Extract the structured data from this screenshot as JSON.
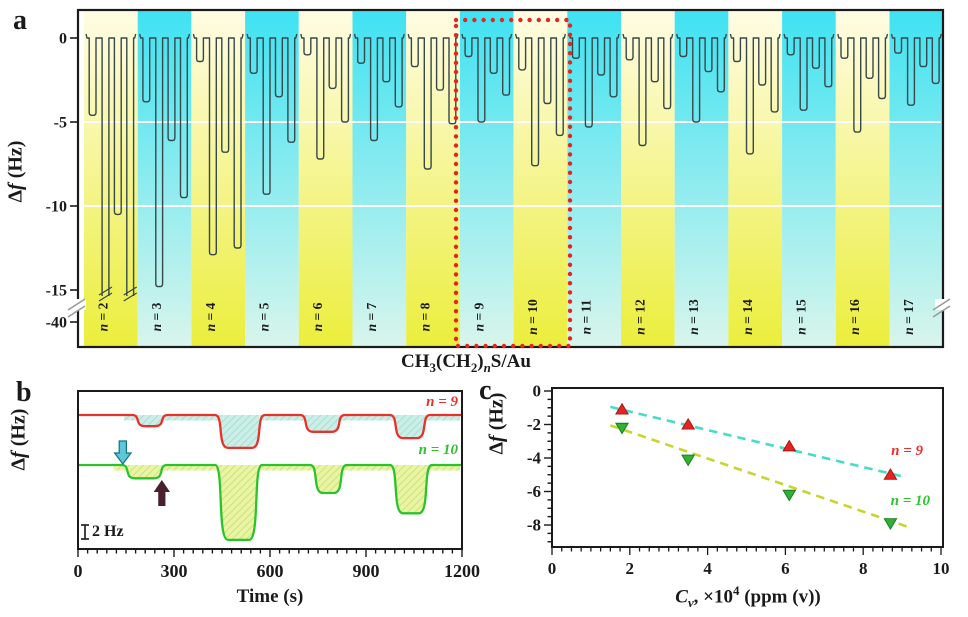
{
  "figure": {
    "panel_labels": {
      "a": "a",
      "b": "b",
      "c": "c"
    }
  },
  "colors": {
    "axis": "#1a1a1a",
    "trace": "#37474a",
    "red": "#e8312b",
    "green": "#2bc32b",
    "band_yellow_top": "#fffce4",
    "band_yellow_bottom": "#ebee3c",
    "band_cyan_top": "#3fe2f2",
    "band_cyan_bottom": "#d8f5ec",
    "highlight_red": "#e52320",
    "cyan_fill": "#cdeee6",
    "cyan_hatch": "#97dcd1",
    "green_fill": "#e9f4a6",
    "green_hatch": "#c6df67",
    "trend_cyan": "#45ddc5",
    "trend_yellow": "#c9d42e",
    "marker_red": "#e52320",
    "marker_red_edge": "#a51515",
    "marker_green": "#2eb135",
    "marker_green_edge": "#157a1c",
    "arrow_cyan": "#5bc8d8",
    "arrow_cyan_edge": "#15717f",
    "arrow_maroon": "#4a2030",
    "break_mark": "#9a9a9a"
  },
  "panel_a": {
    "label": "a",
    "ylabel": {
      "d": "Δ",
      "f": "f",
      "rest": " (Hz)"
    },
    "ytick_labels": [
      "0",
      "-5",
      "-10",
      "-15",
      "-40"
    ],
    "xlabel": {
      "p1": "CH",
      "s1": "3",
      "p2": "(CH",
      "s2": "2",
      "p3": ")",
      "s3": "n",
      "p4": "S/Au"
    }
  },
  "panel_b": {
    "label": "b",
    "ylabel": {
      "d": "Δ",
      "f": "f",
      "rest": " (Hz)"
    },
    "xlabel": "Time (s)",
    "xtick_labels": [
      "0",
      "300",
      "600",
      "900",
      "1200"
    ],
    "scalebar_label": "2 Hz",
    "series_labels": {
      "n9": {
        "n": "n",
        "eq": " = ",
        "val": "9"
      },
      "n10": {
        "n": "n",
        "eq": " = ",
        "val": "10"
      }
    }
  },
  "panel_c": {
    "label": "c",
    "ylabel": {
      "d": "Δ",
      "f": "f",
      "rest": " (Hz)"
    },
    "xlabel": {
      "c": "C",
      "v": "v",
      "mid": ", ×10",
      "exp": "4",
      "rest": " (ppm (v))"
    },
    "xtick_labels": [
      "0",
      "2",
      "4",
      "6",
      "8",
      "10"
    ],
    "ytick_labels": [
      "0",
      "-2",
      "-4",
      "-6",
      "-8"
    ],
    "series_labels": {
      "n9": {
        "n": "n",
        "eq": " = ",
        "val": "9"
      },
      "n10": {
        "n": "n",
        "eq": " = ",
        "val": "10"
      }
    }
  },
  "chart_data": [
    {
      "id": "a",
      "type": "line",
      "description": "QCM frequency responses for CH3(CH2)nS/Au monolayers, four analyte injections per chain length",
      "ylabel": "Δf (Hz)",
      "xlabel": "CH3(CH2)nS/Au",
      "yticks": [
        0,
        -5,
        -10,
        -15,
        -40
      ],
      "axis_break_between": [
        -15,
        -40
      ],
      "gridlines_hz": [
        -5,
        -10
      ],
      "highlight_box_bands": [
        9,
        10
      ],
      "bands": [
        {
          "n": 2,
          "label": "n = 2",
          "tint": "yellow",
          "dips_hz": [
            -4.6,
            -40,
            -10.5,
            -40
          ]
        },
        {
          "n": 3,
          "label": "n = 3",
          "tint": "cyan",
          "dips_hz": [
            -3.8,
            -14.8,
            -6.1,
            -9.5
          ]
        },
        {
          "n": 4,
          "label": "n = 4",
          "tint": "yellow",
          "dips_hz": [
            -1.4,
            -12.9,
            -6.8,
            -12.5
          ]
        },
        {
          "n": 5,
          "label": "n = 5",
          "tint": "cyan",
          "dips_hz": [
            -2.1,
            -9.3,
            -3.5,
            -6.2
          ]
        },
        {
          "n": 6,
          "label": "n = 6",
          "tint": "yellow",
          "dips_hz": [
            -1.0,
            -7.2,
            -3.0,
            -5.0
          ]
        },
        {
          "n": 7,
          "label": "n = 7",
          "tint": "cyan",
          "dips_hz": [
            -1.5,
            -6.1,
            -2.6,
            -4.1
          ]
        },
        {
          "n": 8,
          "label": "n = 8",
          "tint": "yellow",
          "dips_hz": [
            -1.7,
            -7.8,
            -3.1,
            -5.1
          ]
        },
        {
          "n": 9,
          "label": "n = 9",
          "tint": "cyan",
          "dips_hz": [
            -1.1,
            -5.0,
            -2.1,
            -3.4
          ]
        },
        {
          "n": 10,
          "label": "n = 10",
          "tint": "yellow",
          "dips_hz": [
            -1.9,
            -7.6,
            -3.9,
            -5.8
          ]
        },
        {
          "n": 11,
          "label": "n = 11",
          "tint": "cyan",
          "dips_hz": [
            -1.2,
            -5.3,
            -2.2,
            -3.5
          ]
        },
        {
          "n": 12,
          "label": "n = 12",
          "tint": "yellow",
          "dips_hz": [
            -1.3,
            -6.4,
            -2.6,
            -4.2
          ]
        },
        {
          "n": 13,
          "label": "n = 13",
          "tint": "cyan",
          "dips_hz": [
            -1.1,
            -5.0,
            -2.0,
            -3.2
          ]
        },
        {
          "n": 14,
          "label": "n = 14",
          "tint": "yellow",
          "dips_hz": [
            -1.4,
            -6.9,
            -2.8,
            -4.4
          ]
        },
        {
          "n": 15,
          "label": "n = 15",
          "tint": "cyan",
          "dips_hz": [
            -1.0,
            -4.3,
            -1.8,
            -2.9
          ]
        },
        {
          "n": 16,
          "label": "n = 16",
          "tint": "yellow",
          "dips_hz": [
            -1.2,
            -5.6,
            -2.4,
            -3.6
          ]
        },
        {
          "n": 17,
          "label": "n = 17",
          "tint": "cyan",
          "dips_hz": [
            -0.9,
            -4.0,
            -1.7,
            -2.7
          ]
        }
      ]
    },
    {
      "id": "b",
      "type": "line",
      "xlabel": "Time (s)",
      "xlim": [
        0,
        1200
      ],
      "xticks": [
        0,
        300,
        600,
        900,
        1200
      ],
      "minor_tick_s": 30,
      "scalebar_hz": 2,
      "series": [
        {
          "name": "n = 9",
          "color_key": "red",
          "fill_key": "cyan",
          "dips": [
            {
              "t": [
                169,
                281
              ],
              "df_hz": -1.6
            },
            {
              "t": [
                428,
                584
              ],
              "df_hz": -4.7
            },
            {
              "t": [
                694,
                834
              ],
              "df_hz": -2.4
            },
            {
              "t": [
                975,
                1100
              ],
              "df_hz": -3.3
            }
          ]
        },
        {
          "name": "n = 10",
          "color_key": "green",
          "fill_key": "green",
          "dips": [
            {
              "t": [
                137,
                278
              ],
              "df_hz": -1.9
            },
            {
              "t": [
                428,
                575
              ],
              "df_hz": -10.7
            },
            {
              "t": [
                725,
                840
              ],
              "df_hz": -4.0
            },
            {
              "t": [
                975,
                1106
              ],
              "df_hz": -6.9
            }
          ]
        }
      ],
      "annotations": {
        "down_arrow_t": 140,
        "up_arrow_t": 262
      }
    },
    {
      "id": "c",
      "type": "scatter",
      "xlabel": "Cv, ×10^4 (ppm (v))",
      "ylabel": "Δf (Hz)",
      "xlim": [
        0,
        10
      ],
      "ylim": [
        -9.3,
        0.2
      ],
      "xticks": [
        0,
        2,
        4,
        6,
        8,
        10
      ],
      "yticks": [
        0,
        -2,
        -4,
        -6,
        -8
      ],
      "series": [
        {
          "name": "n = 9",
          "marker": "triangle-up",
          "x": [
            1.8,
            3.5,
            6.1,
            8.7
          ],
          "y": [
            -1.1,
            -2.0,
            -3.3,
            -5.0
          ],
          "trend": {
            "x": [
              1.5,
              9.1
            ],
            "y": [
              -0.95,
              -5.15
            ]
          }
        },
        {
          "name": "n = 10",
          "marker": "triangle-down",
          "x": [
            1.8,
            3.5,
            6.1,
            8.7
          ],
          "y": [
            -2.2,
            -4.1,
            -6.2,
            -7.9
          ],
          "trend": {
            "x": [
              1.5,
              9.2
            ],
            "y": [
              -2.05,
              -8.15
            ]
          }
        }
      ]
    }
  ]
}
